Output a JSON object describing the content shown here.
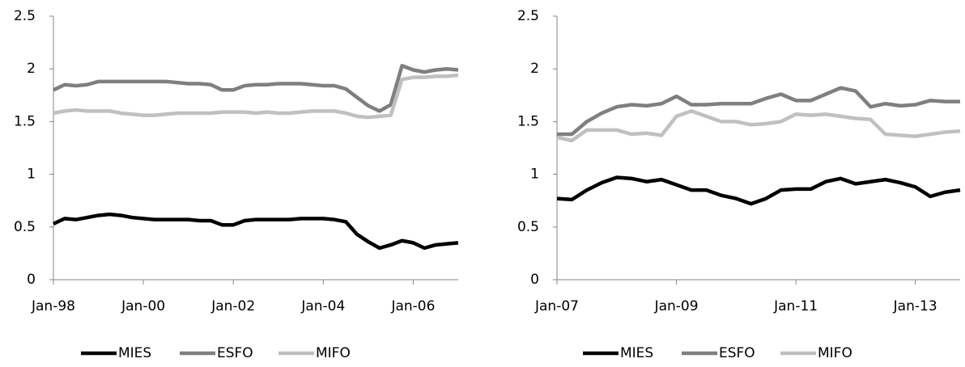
{
  "chart_data": [
    {
      "type": "line",
      "categories": [
        "Jan-98",
        null,
        null,
        null,
        null,
        null,
        null,
        null,
        "Jan-00",
        null,
        null,
        null,
        null,
        null,
        null,
        null,
        "Jan-02",
        null,
        null,
        null,
        null,
        null,
        null,
        null,
        "Jan-04",
        null,
        null,
        null,
        null,
        null,
        null,
        null,
        "Jan-06",
        null,
        null,
        null,
        null
      ],
      "series": [
        {
          "name": "MIES",
          "color": "#000000",
          "values": [
            0.53,
            0.58,
            0.57,
            0.59,
            0.61,
            0.62,
            0.61,
            0.59,
            0.58,
            0.57,
            0.57,
            0.57,
            0.57,
            0.56,
            0.56,
            0.52,
            0.52,
            0.56,
            0.57,
            0.57,
            0.57,
            0.57,
            0.58,
            0.58,
            0.58,
            0.57,
            0.55,
            0.43,
            0.36,
            0.3,
            0.33,
            0.37,
            0.35,
            0.3,
            0.33,
            0.34,
            0.35
          ]
        },
        {
          "name": "ESFO",
          "color": "#7f7f7f",
          "values": [
            1.8,
            1.85,
            1.84,
            1.85,
            1.88,
            1.88,
            1.88,
            1.88,
            1.88,
            1.88,
            1.88,
            1.87,
            1.86,
            1.86,
            1.85,
            1.8,
            1.8,
            1.84,
            1.85,
            1.85,
            1.86,
            1.86,
            1.86,
            1.85,
            1.84,
            1.84,
            1.81,
            1.73,
            1.65,
            1.6,
            1.66,
            2.03,
            1.99,
            1.97,
            1.99,
            2.0,
            1.99
          ]
        },
        {
          "name": "MIFO",
          "color": "#c0c0c0",
          "values": [
            1.58,
            1.6,
            1.61,
            1.6,
            1.6,
            1.6,
            1.58,
            1.57,
            1.56,
            1.56,
            1.57,
            1.58,
            1.58,
            1.58,
            1.58,
            1.59,
            1.59,
            1.59,
            1.58,
            1.59,
            1.58,
            1.58,
            1.59,
            1.6,
            1.6,
            1.6,
            1.58,
            1.55,
            1.54,
            1.55,
            1.56,
            1.9,
            1.92,
            1.92,
            1.93,
            1.93,
            1.94
          ]
        }
      ],
      "ylim": [
        0,
        2.5
      ],
      "yticks": [
        0,
        0.5,
        1,
        1.5,
        2,
        2.5
      ],
      "legend": "bottom"
    },
    {
      "type": "line",
      "categories": [
        "Jan-07",
        null,
        null,
        null,
        null,
        null,
        null,
        null,
        "Jan-09",
        null,
        null,
        null,
        null,
        null,
        null,
        null,
        "Jan-11",
        null,
        null,
        null,
        null,
        null,
        null,
        null,
        "Jan-13",
        null,
        null,
        null
      ],
      "series": [
        {
          "name": "MIES",
          "color": "#000000",
          "values": [
            0.77,
            0.76,
            0.85,
            0.92,
            0.97,
            0.96,
            0.93,
            0.95,
            0.9,
            0.85,
            0.85,
            0.8,
            0.77,
            0.72,
            0.77,
            0.85,
            0.86,
            0.86,
            0.93,
            0.96,
            0.91,
            0.93,
            0.95,
            0.92,
            0.88,
            0.79,
            0.83,
            0.85
          ]
        },
        {
          "name": "ESFO",
          "color": "#7f7f7f",
          "values": [
            1.38,
            1.38,
            1.5,
            1.58,
            1.64,
            1.66,
            1.65,
            1.67,
            1.74,
            1.66,
            1.66,
            1.67,
            1.67,
            1.67,
            1.72,
            1.76,
            1.7,
            1.7,
            1.76,
            1.82,
            1.79,
            1.64,
            1.67,
            1.65,
            1.66,
            1.7,
            1.69,
            1.69
          ]
        },
        {
          "name": "MIFO",
          "color": "#c0c0c0",
          "values": [
            1.35,
            1.32,
            1.42,
            1.42,
            1.42,
            1.38,
            1.39,
            1.37,
            1.55,
            1.6,
            1.55,
            1.5,
            1.5,
            1.47,
            1.48,
            1.5,
            1.57,
            1.56,
            1.57,
            1.55,
            1.53,
            1.52,
            1.38,
            1.37,
            1.36,
            1.38,
            1.4,
            1.41
          ]
        }
      ],
      "ylim": [
        0,
        2.5
      ],
      "yticks": [
        0,
        0.5,
        1,
        1.5,
        2,
        2.5
      ],
      "legend": "bottom"
    }
  ]
}
